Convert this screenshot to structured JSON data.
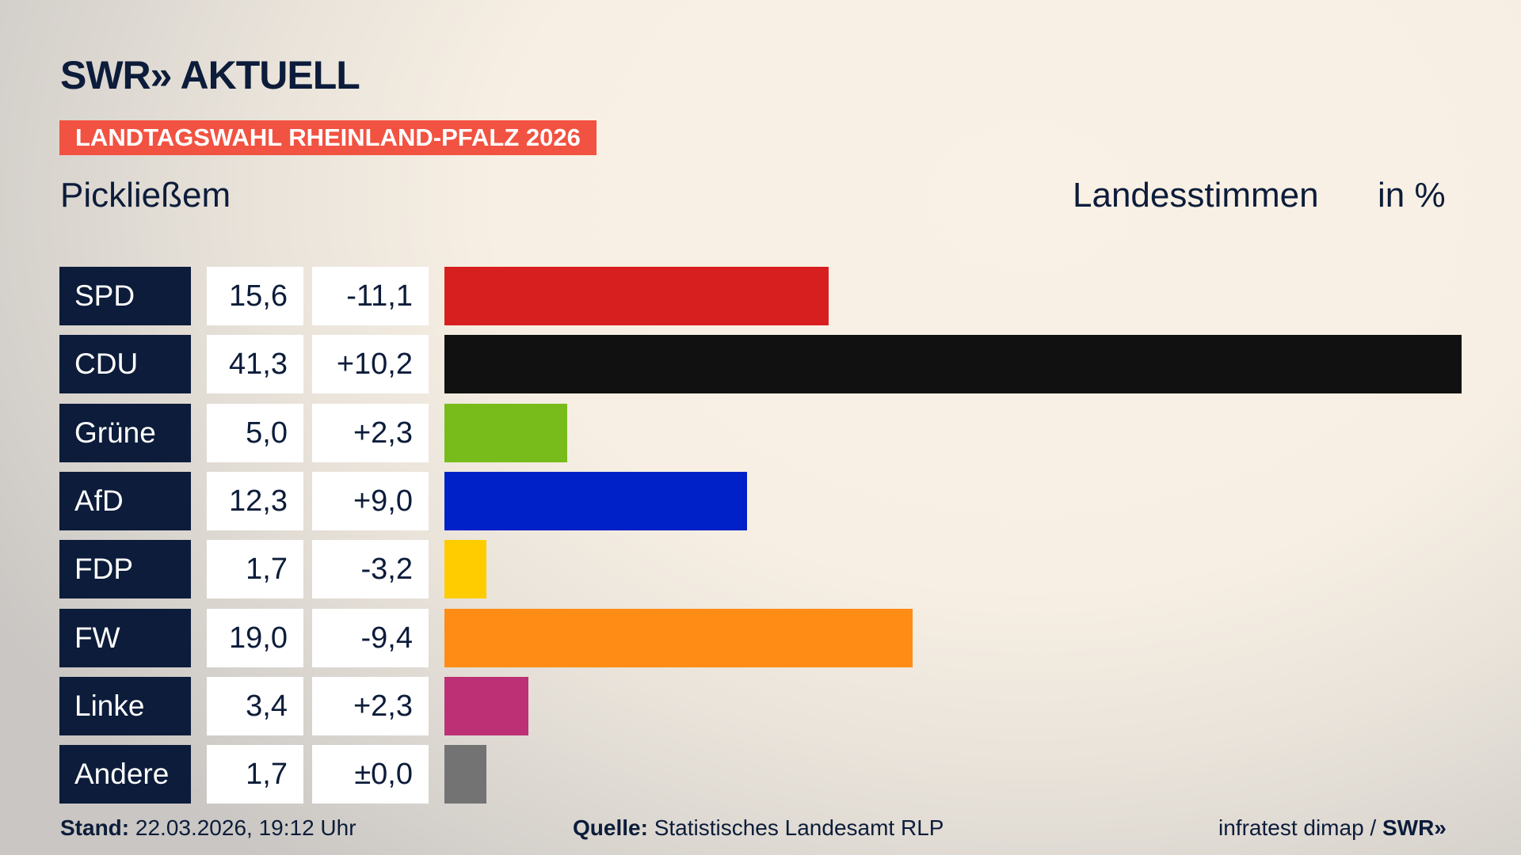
{
  "header": {
    "logo": "SWR» AKTUELL",
    "banner": "LANDTAGSWAHL RHEINLAND-PFALZ 2026",
    "location": "Pickließem",
    "vote_type": "Landesstimmen",
    "unit": "in %"
  },
  "chart_data": {
    "type": "bar",
    "orientation": "horizontal",
    "categories": [
      "SPD",
      "CDU",
      "Grüne",
      "AfD",
      "FDP",
      "FW",
      "Linke",
      "Andere"
    ],
    "values": [
      15.6,
      41.3,
      5.0,
      12.3,
      1.7,
      19.0,
      3.4,
      1.7
    ],
    "value_labels": [
      "15,6",
      "41,3",
      "5,0",
      "12,3",
      "1,7",
      "19,0",
      "3,4",
      "1,7"
    ],
    "diff_labels": [
      "-11,1",
      "+10,2",
      "+2,3",
      "+9,0",
      "-3,2",
      "-9,4",
      "+2,3",
      "±0,0"
    ],
    "colors": [
      "#d71f1f",
      "#111111",
      "#78bc1b",
      "#0020c8",
      "#ffcc00",
      "#ff8c14",
      "#bd3075",
      "#737373"
    ],
    "xlim": [
      0,
      41.3
    ]
  },
  "footer": {
    "stand_label": "Stand:",
    "stand_value": "22.03.2026, 19:12 Uhr",
    "source_label": "Quelle:",
    "source_value": "Statistisches Landesamt RLP",
    "credit": "infratest dimap / ",
    "credit_logo": "SWR»"
  }
}
